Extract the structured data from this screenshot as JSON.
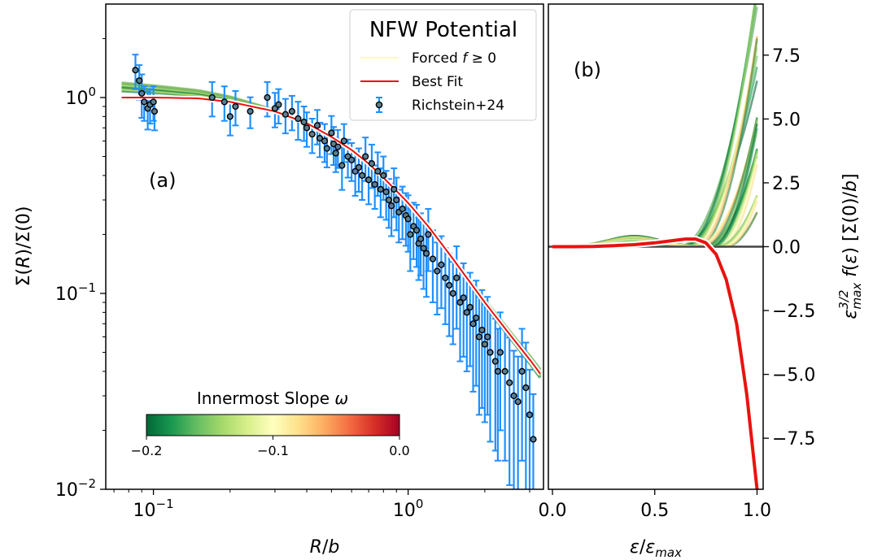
{
  "chart_data": [
    {
      "panel_label": "(a)",
      "type": "scatter",
      "x_scale": "log",
      "y_scale": "log",
      "xlim": [
        0.065,
        3.4
      ],
      "ylim": [
        0.01,
        3.0
      ],
      "xlabel": "R/b",
      "ylabel": "Σ(R)/Σ(0)",
      "x_ticks": [
        {
          "value": 0.1,
          "base": "10",
          "exp": "−1"
        },
        {
          "value": 1.0,
          "base": "10",
          "exp": "0"
        }
      ],
      "y_ticks": [
        {
          "value": 0.01,
          "base": "10",
          "exp": "−2"
        },
        {
          "value": 0.1,
          "base": "10",
          "exp": "−1"
        },
        {
          "value": 1.0,
          "base": "10",
          "exp": "0"
        }
      ],
      "legend": {
        "title": "NFW Potential",
        "position": "top-right",
        "entries": [
          {
            "label": "Forced f ≥ 0",
            "color": "#ffffa8",
            "kind": "line"
          },
          {
            "label": "Best Fit",
            "color": "#e8130f",
            "kind": "line"
          },
          {
            "label": "Richstein+24",
            "color": "#1f8fff",
            "kind": "errorbar"
          }
        ]
      },
      "colorbar": {
        "title": "Innermost Slope ω",
        "range": [
          -0.2,
          0.0
        ],
        "ticks": [
          {
            "value": -0.2,
            "label": "−0.2"
          },
          {
            "value": -0.1,
            "label": "−0.1"
          },
          {
            "value": 0.0,
            "label": "0.0"
          }
        ],
        "colors": [
          "#006837",
          "#1a9850",
          "#66bd63",
          "#a6d96a",
          "#d9ef8b",
          "#ffffbf",
          "#fee08b",
          "#fdae61",
          "#f46d43",
          "#d73027",
          "#a50026"
        ]
      },
      "series": [
        {
          "name": "Richstein+24",
          "kind": "errorbar",
          "color": "#1f8fff",
          "marker_face": "#5a7f95",
          "x": [
            0.085,
            0.088,
            0.09,
            0.092,
            0.095,
            0.097,
            0.1,
            0.101,
            0.17,
            0.19,
            0.2,
            0.21,
            0.24,
            0.28,
            0.3,
            0.31,
            0.33,
            0.35,
            0.37,
            0.39,
            0.4,
            0.42,
            0.44,
            0.45,
            0.47,
            0.48,
            0.5,
            0.51,
            0.52,
            0.53,
            0.55,
            0.56,
            0.58,
            0.6,
            0.62,
            0.64,
            0.66,
            0.68,
            0.7,
            0.72,
            0.74,
            0.76,
            0.78,
            0.8,
            0.82,
            0.84,
            0.86,
            0.88,
            0.9,
            0.92,
            0.95,
            0.98,
            1.0,
            1.02,
            1.05,
            1.08,
            1.1,
            1.12,
            1.15,
            1.18,
            1.2,
            1.25,
            1.3,
            1.35,
            1.4,
            1.45,
            1.5,
            1.55,
            1.6,
            1.65,
            1.7,
            1.75,
            1.8,
            1.85,
            1.9,
            1.95,
            2.0,
            2.05,
            2.1,
            2.2,
            2.25,
            2.3,
            2.4,
            2.5,
            2.6,
            2.7,
            2.8,
            2.9,
            3.0,
            3.1
          ],
          "y": [
            1.38,
            1.22,
            1.05,
            0.95,
            0.88,
            0.92,
            0.95,
            0.85,
            1.0,
            0.95,
            0.8,
            0.9,
            0.85,
            1.0,
            0.88,
            0.92,
            0.82,
            0.85,
            0.78,
            0.75,
            0.7,
            0.65,
            0.72,
            0.62,
            0.6,
            0.55,
            0.66,
            0.58,
            0.52,
            0.56,
            0.45,
            0.6,
            0.5,
            0.48,
            0.42,
            0.44,
            0.4,
            0.5,
            0.38,
            0.46,
            0.36,
            0.42,
            0.34,
            0.4,
            0.33,
            0.3,
            0.28,
            0.34,
            0.3,
            0.26,
            0.27,
            0.25,
            0.24,
            0.2,
            0.22,
            0.21,
            0.18,
            0.19,
            0.17,
            0.16,
            0.2,
            0.15,
            0.13,
            0.14,
            0.12,
            0.11,
            0.1,
            0.12,
            0.09,
            0.095,
            0.08,
            0.085,
            0.07,
            0.075,
            0.06,
            0.065,
            0.055,
            0.06,
            0.05,
            0.045,
            0.04,
            0.05,
            0.04,
            0.035,
            0.03,
            0.028,
            0.04,
            0.033,
            0.024,
            0.018
          ],
          "err_frac": [
            0.2,
            0.2,
            0.25,
            0.2,
            0.22,
            0.2,
            0.2,
            0.2,
            0.2,
            0.2,
            0.2,
            0.2,
            0.18,
            0.2,
            0.2,
            0.2,
            0.2,
            0.2,
            0.22,
            0.2,
            0.2,
            0.2,
            0.2,
            0.2,
            0.22,
            0.2,
            0.22,
            0.22,
            0.2,
            0.22,
            0.25,
            0.22,
            0.22,
            0.22,
            0.25,
            0.25,
            0.25,
            0.25,
            0.25,
            0.25,
            0.25,
            0.25,
            0.28,
            0.25,
            0.28,
            0.28,
            0.3,
            0.28,
            0.3,
            0.3,
            0.3,
            0.3,
            0.32,
            0.35,
            0.32,
            0.35,
            0.35,
            0.35,
            0.38,
            0.4,
            0.35,
            0.4,
            0.4,
            0.4,
            0.42,
            0.45,
            0.45,
            0.45,
            0.5,
            0.5,
            0.5,
            0.5,
            0.55,
            0.55,
            0.6,
            0.6,
            0.6,
            0.6,
            0.65,
            0.65,
            0.65,
            0.6,
            0.65,
            0.7,
            0.7,
            0.7,
            0.65,
            0.7,
            0.7,
            0.7
          ]
        },
        {
          "name": "Best Fit",
          "kind": "curve",
          "color": "#e8130f",
          "x": [
            0.075,
            0.1,
            0.15,
            0.2,
            0.3,
            0.4,
            0.5,
            0.6,
            0.7,
            0.8,
            1.0,
            1.2,
            1.5,
            2.0,
            2.5,
            3.0,
            3.3
          ],
          "y": [
            1.0,
            1.0,
            0.99,
            0.95,
            0.85,
            0.74,
            0.63,
            0.54,
            0.46,
            0.39,
            0.29,
            0.22,
            0.15,
            0.09,
            0.062,
            0.046,
            0.039
          ]
        }
      ]
    },
    {
      "panel_label": "(b)",
      "type": "line",
      "xlim": [
        -0.02,
        1.03
      ],
      "ylim": [
        -9.5,
        9.5
      ],
      "xlabel": "ε/ε_max",
      "ylabel": "ε_max^(3/2) f(ε) [Σ(0)/b]",
      "x_ticks": [
        {
          "value": 0.0,
          "label": "0.0"
        },
        {
          "value": 0.5,
          "label": "0.5"
        },
        {
          "value": 1.0,
          "label": "1.0"
        }
      ],
      "y_ticks": [
        {
          "value": 7.5,
          "label": "7.5"
        },
        {
          "value": 5.0,
          "label": "5.0"
        },
        {
          "value": 2.5,
          "label": "2.5"
        },
        {
          "value": 0.0,
          "label": "0.0"
        },
        {
          "value": -2.5,
          "label": "−2.5"
        },
        {
          "value": -5.0,
          "label": "−5.0"
        },
        {
          "value": -7.5,
          "label": "−7.5"
        }
      ],
      "series": [
        {
          "name": "Best Fit",
          "kind": "curve",
          "color": "#e8130f",
          "x": [
            0.0,
            0.1,
            0.2,
            0.3,
            0.4,
            0.5,
            0.6,
            0.65,
            0.7,
            0.75,
            0.8,
            0.85,
            0.9,
            0.95,
            1.0
          ],
          "y": [
            0.0,
            0.0,
            0.01,
            0.04,
            0.08,
            0.15,
            0.25,
            0.3,
            0.3,
            0.15,
            -0.3,
            -1.3,
            -3.0,
            -5.8,
            -9.5
          ]
        }
      ]
    }
  ]
}
